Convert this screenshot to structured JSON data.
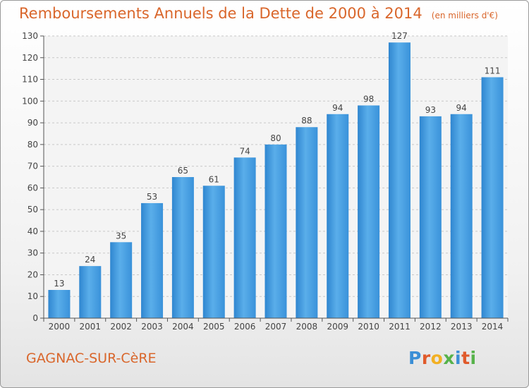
{
  "chart_data": {
    "type": "bar",
    "title": "Remboursements Annuels de la Dette de 2000 à 2014",
    "subtitle": "(en milliers d'€)",
    "categories": [
      "2000",
      "2001",
      "2002",
      "2003",
      "2004",
      "2005",
      "2006",
      "2007",
      "2008",
      "2009",
      "2010",
      "2011",
      "2012",
      "2013",
      "2014"
    ],
    "values": [
      13,
      24,
      35,
      53,
      65,
      61,
      74,
      80,
      88,
      94,
      98,
      127,
      93,
      94,
      111
    ],
    "ylim": [
      0,
      130
    ],
    "yticks": [
      0,
      10,
      20,
      30,
      40,
      50,
      60,
      70,
      80,
      90,
      100,
      110,
      120,
      130
    ],
    "xlabel": "",
    "ylabel": "",
    "grid": true,
    "bar_color": "#4a9fe0"
  },
  "footer": {
    "town": "GAGNAC-SUR-CèRE",
    "logo_letters": [
      {
        "ch": "P",
        "color": "#3b8fd6"
      },
      {
        "ch": "r",
        "color": "#e05a2b"
      },
      {
        "ch": "o",
        "color": "#f2b023"
      },
      {
        "ch": "x",
        "color": "#56b24a"
      },
      {
        "ch": "i",
        "color": "#3b8fd6"
      },
      {
        "ch": "t",
        "color": "#e05a2b"
      },
      {
        "ch": "i",
        "color": "#56b24a"
      }
    ]
  }
}
